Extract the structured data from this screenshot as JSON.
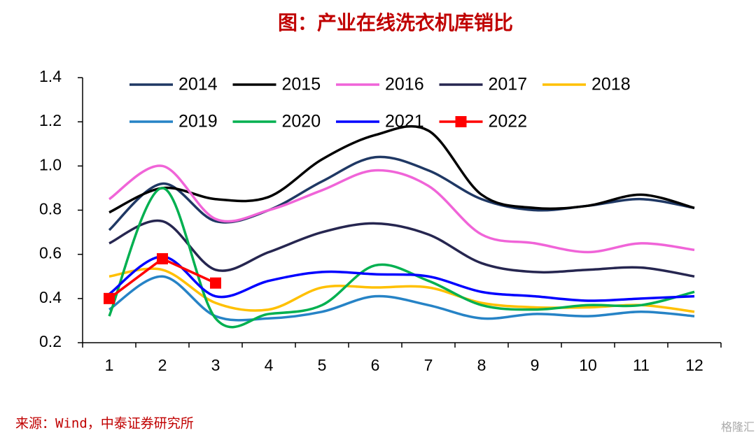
{
  "chart_data": {
    "type": "line",
    "title": "图：产业在线洗衣机库销比",
    "source": "来源：Wind，中泰证券研究所",
    "watermark": "格隆汇",
    "categories": [
      "1",
      "2",
      "3",
      "4",
      "5",
      "6",
      "7",
      "8",
      "9",
      "10",
      "11",
      "12"
    ],
    "ylim": [
      0.2,
      1.4
    ],
    "yticks": [
      0.2,
      0.4,
      0.6,
      0.8,
      {
        "value": 1,
        "label": "1.0"
      },
      1.2,
      1.4
    ],
    "series": [
      {
        "name": "2014",
        "color": "#1f3864",
        "smooth": true,
        "values": [
          0.71,
          0.92,
          0.75,
          0.8,
          0.93,
          1.04,
          0.98,
          0.85,
          0.8,
          0.82,
          0.85,
          0.81
        ]
      },
      {
        "name": "2015",
        "color": "#000000",
        "smooth": true,
        "values": [
          0.79,
          0.9,
          0.85,
          0.86,
          1.03,
          1.14,
          1.16,
          0.87,
          0.81,
          0.82,
          0.87,
          0.81
        ]
      },
      {
        "name": "2016",
        "color": "#f064d8",
        "smooth": true,
        "values": [
          0.85,
          1.0,
          0.76,
          0.8,
          0.89,
          0.98,
          0.91,
          0.69,
          0.65,
          0.61,
          0.65,
          0.62
        ]
      },
      {
        "name": "2017",
        "color": "#262650",
        "smooth": true,
        "values": [
          0.65,
          0.75,
          0.53,
          0.61,
          0.7,
          0.74,
          0.69,
          0.56,
          0.52,
          0.53,
          0.54,
          0.5
        ]
      },
      {
        "name": "2018",
        "color": "#ffc000",
        "smooth": true,
        "values": [
          0.5,
          0.53,
          0.38,
          0.35,
          0.45,
          0.45,
          0.45,
          0.38,
          0.36,
          0.36,
          0.37,
          0.34
        ]
      },
      {
        "name": "2019",
        "color": "#2683c6",
        "smooth": true,
        "values": [
          0.35,
          0.5,
          0.32,
          0.31,
          0.34,
          0.41,
          0.37,
          0.31,
          0.33,
          0.32,
          0.34,
          0.32
        ]
      },
      {
        "name": "2020",
        "color": "#00b050",
        "smooth": true,
        "values": [
          0.32,
          0.9,
          0.31,
          0.33,
          0.37,
          0.55,
          0.48,
          0.37,
          0.35,
          0.37,
          0.37,
          0.43
        ]
      },
      {
        "name": "2021",
        "color": "#0000ff",
        "smooth": true,
        "values": [
          0.42,
          0.59,
          0.41,
          0.48,
          0.52,
          0.51,
          0.5,
          0.43,
          0.41,
          0.39,
          0.4,
          0.41
        ]
      },
      {
        "name": "2022",
        "color": "#ff0000",
        "smooth": false,
        "marker": "square",
        "values": [
          0.4,
          0.58,
          0.47,
          null,
          null,
          null,
          null,
          null,
          null,
          null,
          null,
          null
        ]
      }
    ]
  }
}
